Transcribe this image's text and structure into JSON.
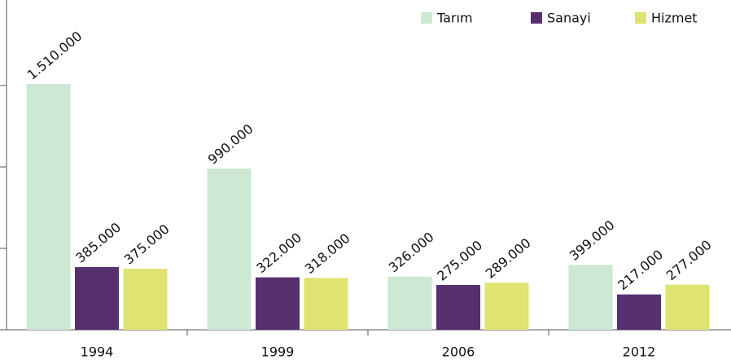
{
  "chart_data": {
    "type": "bar",
    "categories": [
      "1994",
      "1999",
      "2006",
      "2012"
    ],
    "series": [
      {
        "name": "Tarım",
        "color": "#cde8d3",
        "values": [
          1510000,
          990000,
          326000,
          399000
        ],
        "value_labels": [
          "1.510.000",
          "990.000",
          "326.000",
          "399.000"
        ]
      },
      {
        "name": "Sanayi",
        "color": "#57306f",
        "values": [
          385000,
          322000,
          275000,
          217000
        ],
        "value_labels": [
          "385.000",
          "322.000",
          "275.000",
          "217.000"
        ]
      },
      {
        "name": "Hizmet",
        "color": "#dfe36f",
        "values": [
          375000,
          318000,
          289000,
          277000
        ],
        "value_labels": [
          "375.000",
          "318.000",
          "289.000",
          "277.000"
        ]
      }
    ],
    "ylim": [
      0,
      2000000
    ],
    "yticks": [
      0,
      500000,
      1000000,
      1500000
    ],
    "legend": "top-right"
  }
}
